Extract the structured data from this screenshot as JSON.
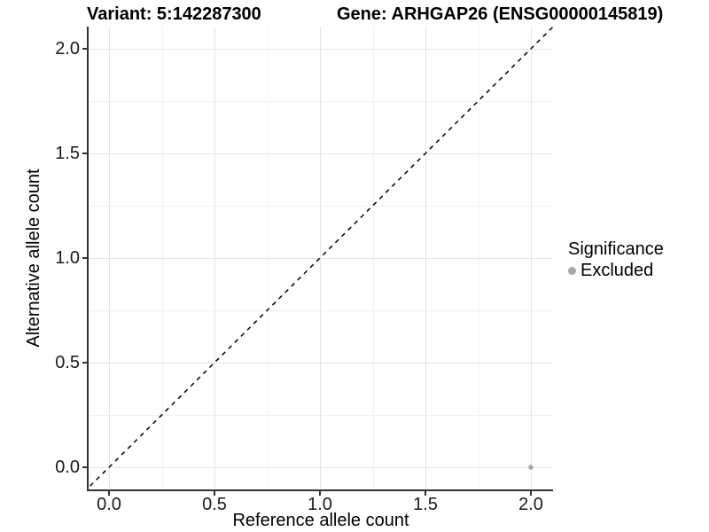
{
  "title": {
    "variant": "Variant: 5:142287300",
    "gene": "Gene: ARHGAP26 (ENSG00000145819)"
  },
  "axes": {
    "x": {
      "label": "Reference allele count",
      "ticks": [
        "0.0",
        "0.5",
        "1.0",
        "1.5",
        "2.0"
      ]
    },
    "y": {
      "label": "Alternative allele count",
      "ticks": [
        "0.0",
        "0.5",
        "1.0",
        "1.5",
        "2.0"
      ]
    }
  },
  "legend": {
    "title": "Significance",
    "entries": [
      {
        "label": "Excluded",
        "color": "#a8a8a8"
      }
    ]
  },
  "colors": {
    "axis_line": "#333333",
    "grid_major": "#e4e4e4",
    "grid_minor": "#f2f2f2",
    "identity_line": "#000000",
    "point": "#a8a8a8"
  },
  "chart_data": {
    "type": "scatter",
    "title": "Variant: 5:142287300          Gene: ARHGAP26 (ENSG00000145819)",
    "xlabel": "Reference allele count",
    "ylabel": "Alternative allele count",
    "xlim": [
      -0.105,
      2.105
    ],
    "ylim": [
      -0.105,
      2.105
    ],
    "x_ticks": [
      0.0,
      0.5,
      1.0,
      1.5,
      2.0
    ],
    "y_ticks": [
      0.0,
      0.5,
      1.0,
      1.5,
      2.0
    ],
    "grid": {
      "visible": true,
      "major_step": 0.5,
      "minor_step": 0.25
    },
    "series": [
      {
        "name": "Excluded",
        "color": "#a8a8a8",
        "marker": "circle",
        "points": [
          {
            "x": 2.0,
            "y": 0.0
          }
        ]
      }
    ],
    "annotations": [
      {
        "type": "abline",
        "slope": 1,
        "intercept": 0,
        "line_style": "dashed",
        "color": "#000000"
      }
    ],
    "legend_position": "right",
    "legend_title": "Significance"
  }
}
